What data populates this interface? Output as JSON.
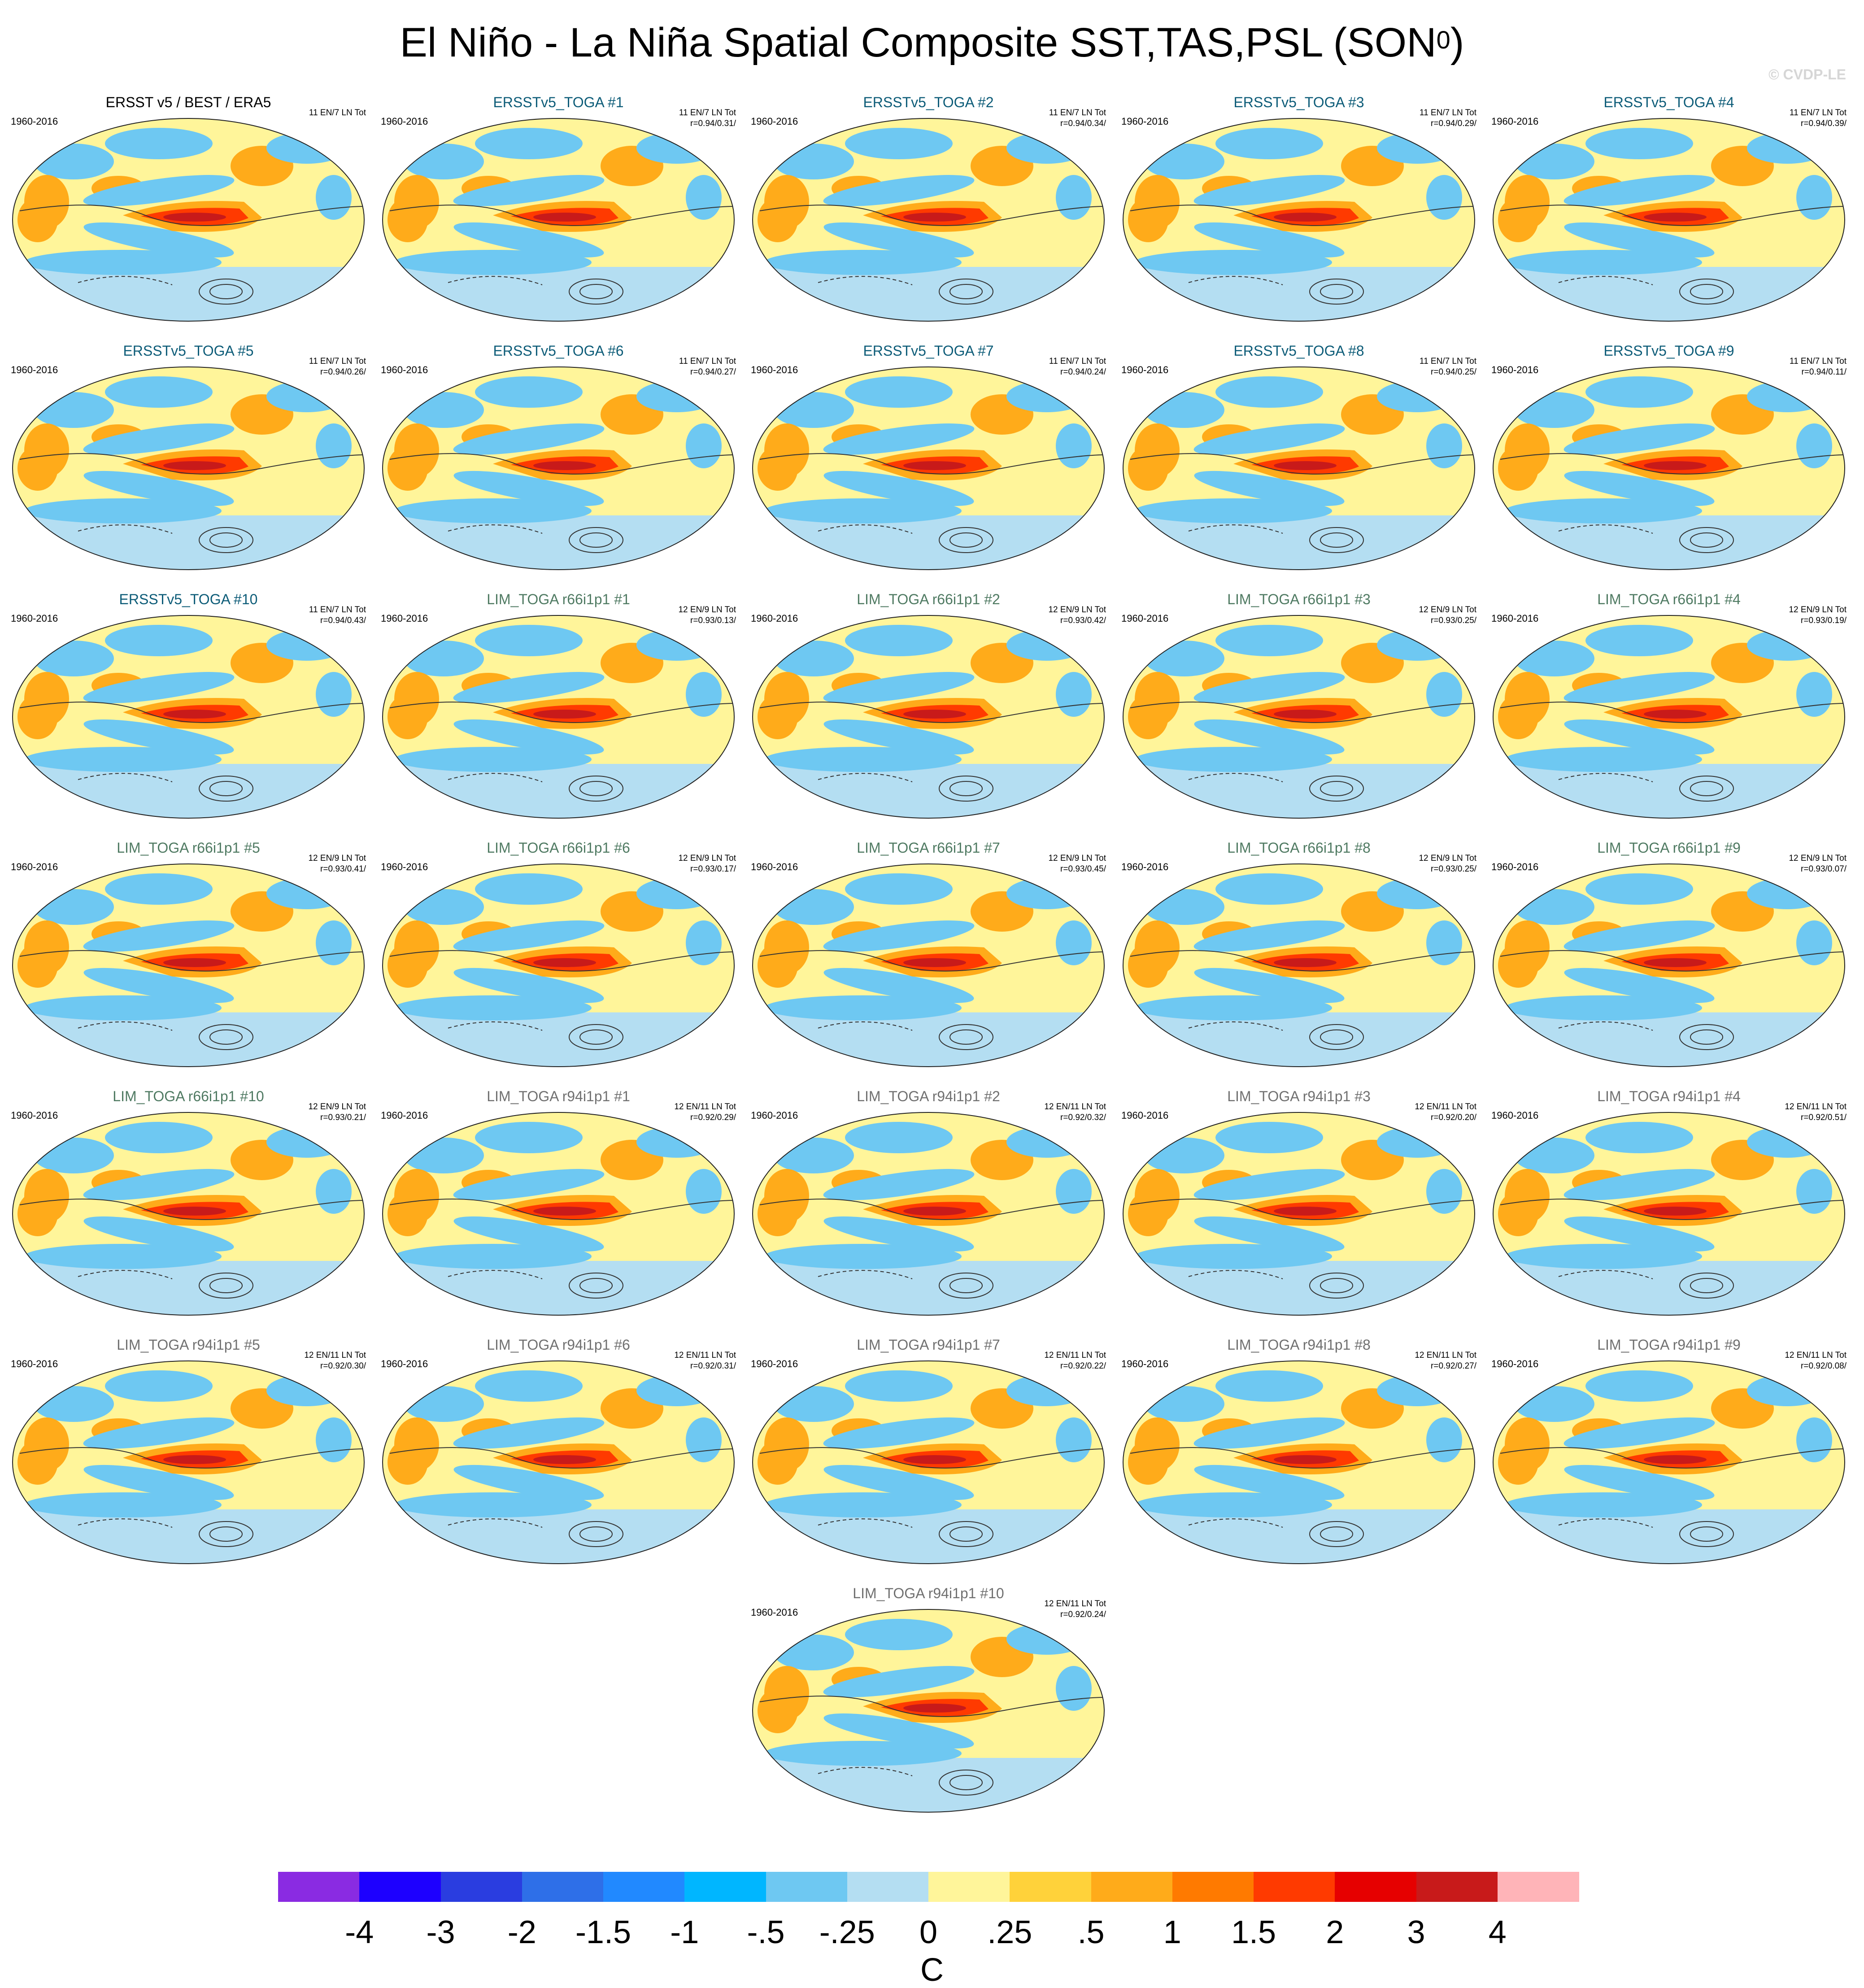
{
  "title": "El Niño - La Niña Spatial Composite SST,TAS,PSL (SON",
  "title_superscript": "0",
  "title_close": ")",
  "watermark": "© CVDP-LE",
  "colors": {
    "obs_title": "#000000",
    "toga_title": "#0d5c78",
    "lim_title": "#4f7a62",
    "lim94_title": "#707070"
  },
  "panels": [
    {
      "title": "ERSST v5 / BEST / ERA5",
      "group": "obs",
      "period": "1960-2016",
      "count": "11 EN/7 LN Tot",
      "corr": ""
    },
    {
      "title": "ERSSTv5_TOGA #1",
      "group": "toga",
      "period": "1960-2016",
      "count": "11 EN/7 LN Tot",
      "corr": "r=0.94/0.31/"
    },
    {
      "title": "ERSSTv5_TOGA #2",
      "group": "toga",
      "period": "1960-2016",
      "count": "11 EN/7 LN Tot",
      "corr": "r=0.94/0.34/"
    },
    {
      "title": "ERSSTv5_TOGA #3",
      "group": "toga",
      "period": "1960-2016",
      "count": "11 EN/7 LN Tot",
      "corr": "r=0.94/0.29/"
    },
    {
      "title": "ERSSTv5_TOGA #4",
      "group": "toga",
      "period": "1960-2016",
      "count": "11 EN/7 LN Tot",
      "corr": "r=0.94/0.39/"
    },
    {
      "title": "ERSSTv5_TOGA #5",
      "group": "toga",
      "period": "1960-2016",
      "count": "11 EN/7 LN Tot",
      "corr": "r=0.94/0.26/"
    },
    {
      "title": "ERSSTv5_TOGA #6",
      "group": "toga",
      "period": "1960-2016",
      "count": "11 EN/7 LN Tot",
      "corr": "r=0.94/0.27/"
    },
    {
      "title": "ERSSTv5_TOGA #7",
      "group": "toga",
      "period": "1960-2016",
      "count": "11 EN/7 LN Tot",
      "corr": "r=0.94/0.24/"
    },
    {
      "title": "ERSSTv5_TOGA #8",
      "group": "toga",
      "period": "1960-2016",
      "count": "11 EN/7 LN Tot",
      "corr": "r=0.94/0.25/"
    },
    {
      "title": "ERSSTv5_TOGA #9",
      "group": "toga",
      "period": "1960-2016",
      "count": "11 EN/7 LN Tot",
      "corr": "r=0.94/0.11/"
    },
    {
      "title": "ERSSTv5_TOGA #10",
      "group": "toga",
      "period": "1960-2016",
      "count": "11 EN/7 LN Tot",
      "corr": "r=0.94/0.43/"
    },
    {
      "title": "LIM_TOGA r66i1p1 #1",
      "group": "lim",
      "period": "1960-2016",
      "count": "12 EN/9 LN Tot",
      "corr": "r=0.93/0.13/"
    },
    {
      "title": "LIM_TOGA r66i1p1 #2",
      "group": "lim",
      "period": "1960-2016",
      "count": "12 EN/9 LN Tot",
      "corr": "r=0.93/0.42/"
    },
    {
      "title": "LIM_TOGA r66i1p1 #3",
      "group": "lim",
      "period": "1960-2016",
      "count": "12 EN/9 LN Tot",
      "corr": "r=0.93/0.25/"
    },
    {
      "title": "LIM_TOGA r66i1p1 #4",
      "group": "lim",
      "period": "1960-2016",
      "count": "12 EN/9 LN Tot",
      "corr": "r=0.93/0.19/"
    },
    {
      "title": "LIM_TOGA r66i1p1 #5",
      "group": "lim",
      "period": "1960-2016",
      "count": "12 EN/9 LN Tot",
      "corr": "r=0.93/0.41/"
    },
    {
      "title": "LIM_TOGA r66i1p1 #6",
      "group": "lim",
      "period": "1960-2016",
      "count": "12 EN/9 LN Tot",
      "corr": "r=0.93/0.17/"
    },
    {
      "title": "LIM_TOGA r66i1p1 #7",
      "group": "lim",
      "period": "1960-2016",
      "count": "12 EN/9 LN Tot",
      "corr": "r=0.93/0.45/"
    },
    {
      "title": "LIM_TOGA r66i1p1 #8",
      "group": "lim",
      "period": "1960-2016",
      "count": "12 EN/9 LN Tot",
      "corr": "r=0.93/0.25/"
    },
    {
      "title": "LIM_TOGA r66i1p1 #9",
      "group": "lim",
      "period": "1960-2016",
      "count": "12 EN/9 LN Tot",
      "corr": "r=0.93/0.07/"
    },
    {
      "title": "LIM_TOGA r66i1p1 #10",
      "group": "lim",
      "period": "1960-2016",
      "count": "12 EN/9 LN Tot",
      "corr": "r=0.93/0.21/"
    },
    {
      "title": "LIM_TOGA r94i1p1 #1",
      "group": "lim94",
      "period": "1960-2016",
      "count": "12 EN/11 LN Tot",
      "corr": "r=0.92/0.29/"
    },
    {
      "title": "LIM_TOGA r94i1p1 #2",
      "group": "lim94",
      "period": "1960-2016",
      "count": "12 EN/11 LN Tot",
      "corr": "r=0.92/0.32/"
    },
    {
      "title": "LIM_TOGA r94i1p1 #3",
      "group": "lim94",
      "period": "1960-2016",
      "count": "12 EN/11 LN Tot",
      "corr": "r=0.92/0.20/"
    },
    {
      "title": "LIM_TOGA r94i1p1 #4",
      "group": "lim94",
      "period": "1960-2016",
      "count": "12 EN/11 LN Tot",
      "corr": "r=0.92/0.51/"
    },
    {
      "title": "LIM_TOGA r94i1p1 #5",
      "group": "lim94",
      "period": "1960-2016",
      "count": "12 EN/11 LN Tot",
      "corr": "r=0.92/0.30/"
    },
    {
      "title": "LIM_TOGA r94i1p1 #6",
      "group": "lim94",
      "period": "1960-2016",
      "count": "12 EN/11 LN Tot",
      "corr": "r=0.92/0.31/"
    },
    {
      "title": "LIM_TOGA r94i1p1 #7",
      "group": "lim94",
      "period": "1960-2016",
      "count": "12 EN/11 LN Tot",
      "corr": "r=0.92/0.22/"
    },
    {
      "title": "LIM_TOGA r94i1p1 #8",
      "group": "lim94",
      "period": "1960-2016",
      "count": "12 EN/11 LN Tot",
      "corr": "r=0.92/0.27/"
    },
    {
      "title": "LIM_TOGA r94i1p1 #9",
      "group": "lim94",
      "period": "1960-2016",
      "count": "12 EN/11 LN Tot",
      "corr": "r=0.92/0.08/"
    },
    {
      "title": "LIM_TOGA r94i1p1 #10",
      "group": "lim94",
      "period": "1960-2016",
      "count": "12 EN/11 LN Tot",
      "corr": "r=0.92/0.24/"
    }
  ],
  "colorbar": {
    "colors": [
      "#8a2be2",
      "#1d00ff",
      "#2a3de0",
      "#2e6fe8",
      "#2189ff",
      "#00b6ff",
      "#6ec8f2",
      "#b4def2",
      "#fff59a",
      "#ffd23a",
      "#ffab1a",
      "#ff7a00",
      "#ff3a00",
      "#e60000",
      "#c81a1a",
      "#ffb4b8"
    ],
    "labels": [
      "-4",
      "-3",
      "-2",
      "-1.5",
      "-1",
      "-.5",
      "-.25",
      "0",
      ".25",
      ".5",
      "1",
      "1.5",
      "2",
      "3",
      "4"
    ],
    "units": "C"
  },
  "map_fill": {
    "background": "#fff59a",
    "equator_band": "#ffab1a",
    "nino_core": "#ff3a00",
    "nino_peak": "#c81a1a",
    "cool_band": "#6ec8f2",
    "southern_ocean": "#b4def2",
    "contour_line": "#333333"
  }
}
